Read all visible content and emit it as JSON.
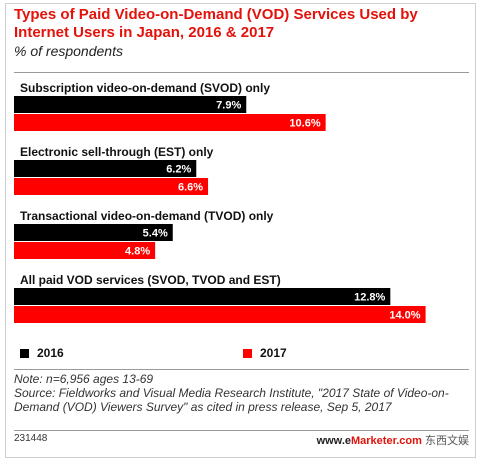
{
  "chart_data": {
    "type": "bar",
    "orientation": "horizontal",
    "title": "Types of Paid Video-on-Demand (VOD) Services Used by Internet Users in Japan, 2016 & 2017",
    "subtitle": "% of respondents",
    "categories": [
      "Subscription video-on-demand (SVOD) only",
      "Electronic sell-through (EST) only",
      "Transactional video-on-demand (TVOD) only",
      "All paid VOD services (SVOD, TVOD and EST)"
    ],
    "series": [
      {
        "name": "2016",
        "color": "#000000",
        "values": [
          7.9,
          6.2,
          5.4,
          12.8
        ],
        "labels": [
          "7.9%",
          "6.2%",
          "5.4%",
          "12.8%"
        ]
      },
      {
        "name": "2017",
        "color": "#ff0000",
        "values": [
          10.6,
          6.6,
          4.8,
          14.0
        ],
        "labels": [
          "10.6%",
          "6.6%",
          "4.8%",
          "14.0%"
        ]
      }
    ],
    "xlim": [
      0,
      14
    ],
    "grid": false,
    "legend_position": "bottom-left"
  },
  "note": "Note: n=6,956 ages 13-69",
  "source": "Source: Fieldworks and Visual Media Research Institute, \"2017 State of Video-on-Demand (VOD) Viewers Survey\" as cited in press release, Sep 5, 2017",
  "chart_id": "231448",
  "brand": {
    "prefix": "www.e",
    "rest": "Marketer.com",
    "watermark": "东西文娱"
  }
}
